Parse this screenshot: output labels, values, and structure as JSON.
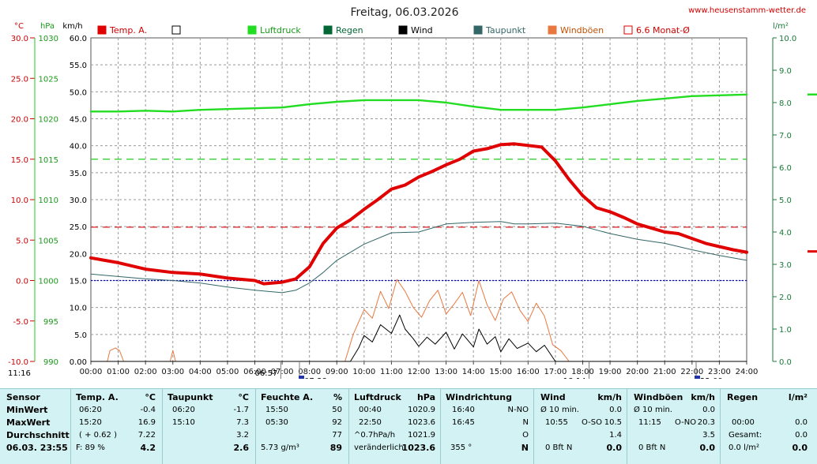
{
  "header": {
    "title": "Freitag, 06.03.2026",
    "website": "www.heusenstamm-wetter.de"
  },
  "axes": {
    "temp_unit": "°C",
    "hpa_unit": "hPa",
    "kmh_unit": "km/h",
    "rain_unit": "l/m²",
    "temp_ticks": [
      "30.0",
      "25.0",
      "20.0",
      "15.0",
      "10.0",
      "5.0",
      "0.0",
      "-5.0",
      "-10.0"
    ],
    "hpa_ticks": [
      "1030",
      "1025",
      "1020",
      "1015",
      "1010",
      "1005",
      "1000",
      "995",
      "990"
    ],
    "kmh_ticks": [
      "60.0",
      "55.0",
      "50.0",
      "45.0",
      "40.0",
      "35.0",
      "30.0",
      "25.0",
      "20.0",
      "15.0",
      "10.0",
      "5.0",
      "0.00"
    ],
    "rain_ticks": [
      "10.0",
      "9.0",
      "8.0",
      "7.0",
      "6.0",
      "5.0",
      "4.0",
      "3.0",
      "2.0",
      "1.0",
      "0.0"
    ],
    "time_ticks": [
      "00:00",
      "01:00",
      "02:00",
      "03:00",
      "04:00",
      "05:00",
      "06:00",
      "07:00",
      "08:00",
      "09:00",
      "10:00",
      "11:00",
      "12:00",
      "13:00",
      "14:00",
      "15:00",
      "16:00",
      "17:00",
      "18:00",
      "19:00",
      "20:00",
      "21:00",
      "22:00",
      "23:00",
      "24:00"
    ],
    "markers": {
      "left_time": "11:16",
      "sunrise_civil": "06:57",
      "sunrise": "07:38",
      "sunset": "18:14",
      "sunset_civil": "22:09"
    }
  },
  "legend": [
    {
      "label": "Temp. A.",
      "color": "#e00000",
      "filled": true
    },
    {
      "label": "",
      "color": "#000000",
      "filled": false
    },
    {
      "label": "Luftdruck",
      "color": "#22dd22",
      "filled": true
    },
    {
      "label": "Regen",
      "color": "#006633",
      "filled": true
    },
    {
      "label": "Wind",
      "color": "#000000",
      "filled": true
    },
    {
      "label": "Taupunkt",
      "color": "#336666",
      "filled": true
    },
    {
      "label": "Windböen",
      "color": "#e87840",
      "filled": true
    },
    {
      "label": "6.6 Monat-Ø",
      "color": "#e00000",
      "filled": false
    }
  ],
  "chart_data": {
    "type": "line",
    "x_unit": "hours",
    "xlim": [
      0,
      24
    ],
    "y_axes": {
      "temp_c": [
        -10,
        30
      ],
      "pressure_hpa": [
        990,
        1030
      ],
      "kmh": [
        0,
        60
      ],
      "rain_lm2": [
        0,
        10
      ]
    },
    "reference_lines": {
      "temp_zero_c": 0,
      "temp_month_avg_c": 6.6,
      "pressure_ref_hpa": 1015
    },
    "series": [
      {
        "name": "Temp. A.",
        "unit": "°C",
        "color": "#e00000",
        "x": [
          0,
          1,
          2,
          3,
          4,
          5,
          6,
          6.33,
          7,
          7.5,
          8,
          8.5,
          9,
          9.5,
          10,
          10.5,
          11,
          11.5,
          12,
          12.5,
          13,
          13.5,
          14,
          14.5,
          15,
          15.5,
          16,
          16.5,
          17,
          17.5,
          18,
          18.5,
          19,
          19.5,
          20,
          20.5,
          21,
          21.5,
          22,
          22.5,
          23,
          23.5,
          24
        ],
        "y": [
          2.8,
          2.2,
          1.4,
          1.0,
          0.8,
          0.3,
          0.0,
          -0.4,
          -0.2,
          0.2,
          1.7,
          4.6,
          6.5,
          7.5,
          8.8,
          10.0,
          11.3,
          11.8,
          12.8,
          13.5,
          14.3,
          15.0,
          16.0,
          16.3,
          16.8,
          16.9,
          16.7,
          16.5,
          14.8,
          12.5,
          10.5,
          9.0,
          8.5,
          7.8,
          7.0,
          6.5,
          6.0,
          5.8,
          5.2,
          4.6,
          4.2,
          3.8,
          3.5
        ]
      },
      {
        "name": "Taupunkt",
        "unit": "°C",
        "color": "#336666",
        "x": [
          0,
          1,
          2,
          3,
          4,
          5,
          6,
          7,
          7.5,
          8,
          8.5,
          9,
          10,
          11,
          12,
          13,
          14,
          15,
          15.5,
          16,
          17,
          18,
          19,
          20,
          21,
          22,
          23,
          24
        ],
        "y": [
          0.8,
          0.5,
          0.2,
          0.0,
          -0.3,
          -0.8,
          -1.2,
          -1.5,
          -1.2,
          -0.3,
          1.0,
          2.5,
          4.5,
          5.9,
          6.0,
          7.0,
          7.2,
          7.3,
          7.0,
          7.0,
          7.1,
          6.7,
          5.8,
          5.1,
          4.6,
          3.8,
          3.1,
          2.5
        ]
      },
      {
        "name": "Luftdruck",
        "unit": "hPa",
        "color": "#22dd22",
        "x": [
          0,
          1,
          2,
          3,
          4,
          5,
          6,
          7,
          8,
          9,
          10,
          11,
          12,
          13,
          14,
          15,
          16,
          17,
          18,
          19,
          20,
          21,
          22,
          23,
          24
        ],
        "y": [
          1020.9,
          1020.9,
          1021.0,
          1020.9,
          1021.1,
          1021.2,
          1021.3,
          1021.4,
          1021.8,
          1022.1,
          1022.3,
          1022.3,
          1022.3,
          1022.0,
          1021.5,
          1021.1,
          1021.1,
          1021.1,
          1021.4,
          1021.8,
          1022.2,
          1022.5,
          1022.8,
          1022.9,
          1023.0
        ]
      },
      {
        "name": "Wind",
        "unit": "km/h",
        "color": "#000000",
        "x": [
          0,
          9.5,
          9.8,
          10,
          10.3,
          10.6,
          11,
          11.3,
          11.5,
          11.8,
          12,
          12.3,
          12.6,
          13,
          13.3,
          13.6,
          14,
          14.2,
          14.5,
          14.8,
          15,
          15.3,
          15.6,
          16,
          16.3,
          16.6,
          17,
          24
        ],
        "y": [
          0,
          0,
          2.5,
          4.8,
          3.6,
          6.8,
          5.2,
          8.6,
          6.0,
          4.2,
          2.8,
          4.5,
          3.2,
          5.4,
          2.3,
          5.1,
          2.7,
          6.0,
          3.2,
          4.6,
          1.8,
          4.2,
          2.4,
          3.4,
          1.8,
          3.0,
          0,
          0
        ]
      },
      {
        "name": "Windböen",
        "unit": "km/h",
        "color": "#e87840",
        "x": [
          0,
          0.6,
          0.7,
          0.9,
          1.05,
          1.2,
          2.9,
          3.0,
          3.1,
          9.3,
          9.6,
          10,
          10.3,
          10.6,
          10.9,
          11.2,
          11.5,
          11.8,
          12.1,
          12.4,
          12.7,
          13,
          13.3,
          13.6,
          13.9,
          14.2,
          14.5,
          14.8,
          15.1,
          15.4,
          15.7,
          16,
          16.3,
          16.6,
          16.9,
          17.2,
          17.5,
          24
        ],
        "y": [
          0,
          0,
          2,
          2.5,
          2,
          0,
          0,
          2,
          0,
          0,
          5,
          9.6,
          8,
          13,
          9.8,
          15.2,
          13,
          10,
          8.2,
          11.3,
          13.2,
          8.8,
          10.7,
          12.8,
          8.5,
          15,
          10.5,
          7.6,
          11.6,
          12.9,
          9.5,
          7.4,
          10.8,
          8.4,
          3.1,
          2,
          0,
          0
        ]
      }
    ]
  },
  "table": {
    "row_labels": {
      "sensor": "Sensor",
      "min": "MinWert",
      "max": "MaxWert",
      "avg": "Durchschnitt",
      "date": "06.03. 23:55"
    },
    "temp": {
      "title": "Temp. A.",
      "unit": "°C",
      "min_time": "06:20",
      "min_val": "-0.4",
      "max_time": "15:20",
      "max_val": "16.9",
      "avg_diff": "( + 0.62 )",
      "avg_val": "7.22",
      "humidity": "F: 89 %",
      "current": "4.2"
    },
    "dew": {
      "title": "Taupunkt",
      "unit": "°C",
      "min_time": "06:20",
      "min_val": "-1.7",
      "max_time": "15:10",
      "max_val": "7.3",
      "avg_val": "3.2",
      "current": "2.6"
    },
    "humid": {
      "title": "Feuchte A.",
      "unit": "%",
      "min_time": "15:50",
      "min_val": "50",
      "max_time": "05:30",
      "max_val": "92",
      "avg_val": "77",
      "abs": "5.73 g/m³",
      "current": "89"
    },
    "press": {
      "title": "Luftdruck",
      "unit": "hPa",
      "min_time": "00:40",
      "min_val": "1020.9",
      "max_time": "22:50",
      "max_val": "1023.6",
      "trend": "^0.7hPa/h",
      "avg_val": "1021.9",
      "tendency": "veränderlich",
      "current": "1023.6"
    },
    "dir": {
      "title": "Windrichtung",
      "min_time": "16:40",
      "min_val": "N-NO",
      "max_time": "16:45",
      "max_val": "N",
      "avg_val": "O",
      "deg": "355 °",
      "current": "N"
    },
    "wind": {
      "title": "Wind",
      "unit": "km/h",
      "min_label": "Ø 10 min.",
      "min_val": "0.0",
      "max_time": "10:55",
      "max_dir": "O-SO",
      "max_val": "10.5",
      "avg_val": "1.4",
      "bft": "0 Bft N",
      "current": "0.0"
    },
    "gust": {
      "title": "Windböen",
      "unit": "km/h",
      "min_label": "Ø 10 min.",
      "min_val": "0.0",
      "max_time": "11:15",
      "max_dir": "O-NO",
      "max_val": "20.3",
      "avg_val": "3.5",
      "bft": "0 Bft N",
      "current": "0.0"
    },
    "rain": {
      "title": "Regen",
      "unit": "l/m²",
      "max_time": "00:00",
      "max_val": "0.0",
      "total_label": "Gesamt:",
      "total_val": "0.0",
      "rate": "0.0 l/m²",
      "current": "0.0"
    }
  }
}
